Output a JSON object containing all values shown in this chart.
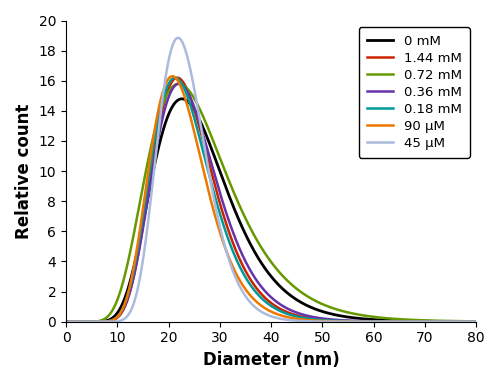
{
  "series": [
    {
      "label": "0 mM",
      "color": "#000000",
      "mu": 3.22,
      "sigma": 0.32,
      "height": 14.8,
      "lw": 2.0
    },
    {
      "label": "1.44 mM",
      "color": "#cc2200",
      "mu": 3.15,
      "sigma": 0.27,
      "height": 16.2,
      "lw": 1.8
    },
    {
      "label": "0.72 mM",
      "color": "#669900",
      "mu": 3.22,
      "sigma": 0.36,
      "height": 15.8,
      "lw": 1.8
    },
    {
      "label": "0.36 mM",
      "color": "#6633aa",
      "mu": 3.17,
      "sigma": 0.28,
      "height": 15.8,
      "lw": 1.8
    },
    {
      "label": "0.18 mM",
      "color": "#009999",
      "mu": 3.13,
      "sigma": 0.27,
      "height": 16.2,
      "lw": 1.8
    },
    {
      "label": "90 μM",
      "color": "#ee7700",
      "mu": 3.1,
      "sigma": 0.26,
      "height": 16.3,
      "lw": 1.8
    },
    {
      "label": "45 μM",
      "color": "#aabbdd",
      "mu": 3.13,
      "sigma": 0.215,
      "height": 18.85,
      "lw": 1.8
    }
  ],
  "xlabel": "Diameter (nm)",
  "ylabel": "Relative count",
  "xlim": [
    0,
    80
  ],
  "ylim": [
    0,
    20
  ],
  "xticks": [
    0,
    10,
    20,
    30,
    40,
    50,
    60,
    70,
    80
  ],
  "yticks": [
    0,
    2,
    4,
    6,
    8,
    10,
    12,
    14,
    16,
    18,
    20
  ],
  "legend_loc": "upper right",
  "figsize": [
    5.0,
    3.84
  ],
  "dpi": 100
}
